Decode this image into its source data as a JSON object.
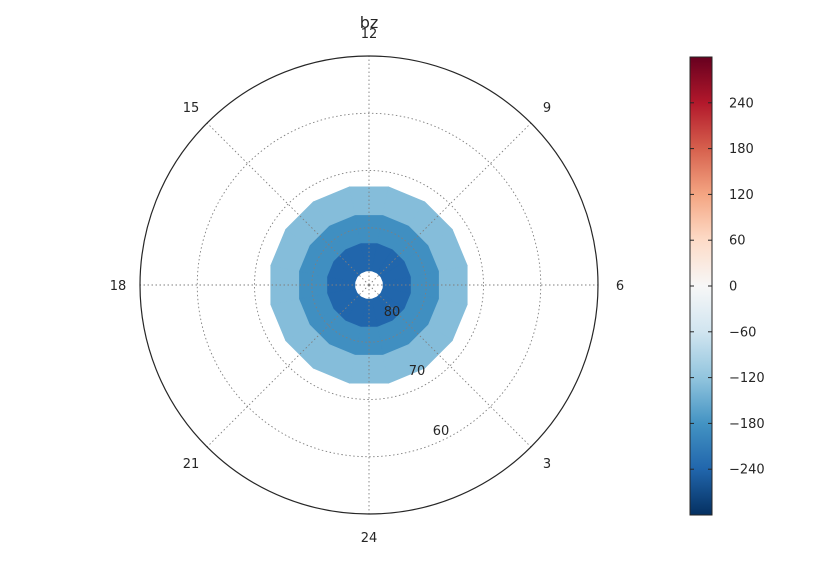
{
  "chart_data": {
    "type": "heatmap",
    "projection": "polar",
    "title": "bz",
    "theta_labels": [
      "12",
      "9",
      "6",
      "3",
      "24",
      "21",
      "18",
      "15"
    ],
    "radial_labels": [
      "80",
      "70",
      "60"
    ],
    "colatitude_range": [
      0,
      40
    ],
    "sector_count": 16,
    "rings": [
      {
        "colat_inner": 0.0,
        "colat_outer": 2.5,
        "value": null
      },
      {
        "colat_inner": 2.5,
        "colat_outer": 7.5,
        "value": -240
      },
      {
        "colat_inner": 7.5,
        "colat_outer": 12.5,
        "value": -185
      },
      {
        "colat_inner": 12.5,
        "colat_outer": 17.5,
        "value": -130
      }
    ],
    "colorbar": {
      "min": -300,
      "max": 300,
      "ticks": [
        -240,
        -180,
        -120,
        -60,
        0,
        60,
        120,
        180,
        240
      ],
      "tick_labels": [
        "−240",
        "−180",
        "−120",
        "−60",
        "0",
        "60",
        "120",
        "180",
        "240"
      ],
      "colormap": "RdBu_r"
    },
    "grid": true,
    "legend": "colorbar-right"
  }
}
